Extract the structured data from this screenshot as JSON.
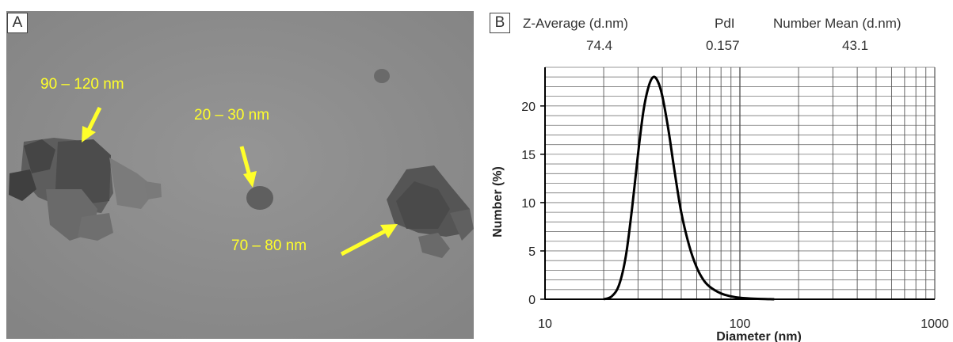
{
  "panel_a": {
    "label": "A",
    "annotations": [
      "90 – 120 nm",
      "20 – 30 nm",
      "70 – 80 nm"
    ],
    "annotation_color": "#ffff2a"
  },
  "panel_b": {
    "label": "B",
    "stats": [
      {
        "name": "Z-Average (d.nm)",
        "value": "74.4"
      },
      {
        "name": "PdI",
        "value": "0.157"
      },
      {
        "name": "Number Mean (d.nm)",
        "value": "43.1"
      }
    ]
  },
  "chart_data": {
    "type": "line",
    "xlabel": "Diameter (nm)",
    "ylabel": "Number (%)",
    "x_scale": "log",
    "xlim": [
      10,
      1000
    ],
    "ylim": [
      0,
      24
    ],
    "x_ticks": [
      10,
      100,
      1000
    ],
    "y_ticks": [
      0,
      5,
      10,
      15,
      20
    ],
    "grid": true,
    "series": [
      {
        "x": [
          20,
          22,
          24,
          26,
          28,
          30,
          32,
          34,
          36,
          38,
          40,
          43,
          46,
          50,
          55,
          60,
          65,
          70,
          80,
          90,
          100,
          120,
          150
        ],
        "y": [
          0,
          0.3,
          1.5,
          4.5,
          9.5,
          15,
          19.5,
          22,
          23,
          22.5,
          21,
          17.5,
          13.5,
          9,
          5.5,
          3.3,
          2,
          1.3,
          0.6,
          0.3,
          0.15,
          0.05,
          0
        ]
      }
    ]
  }
}
